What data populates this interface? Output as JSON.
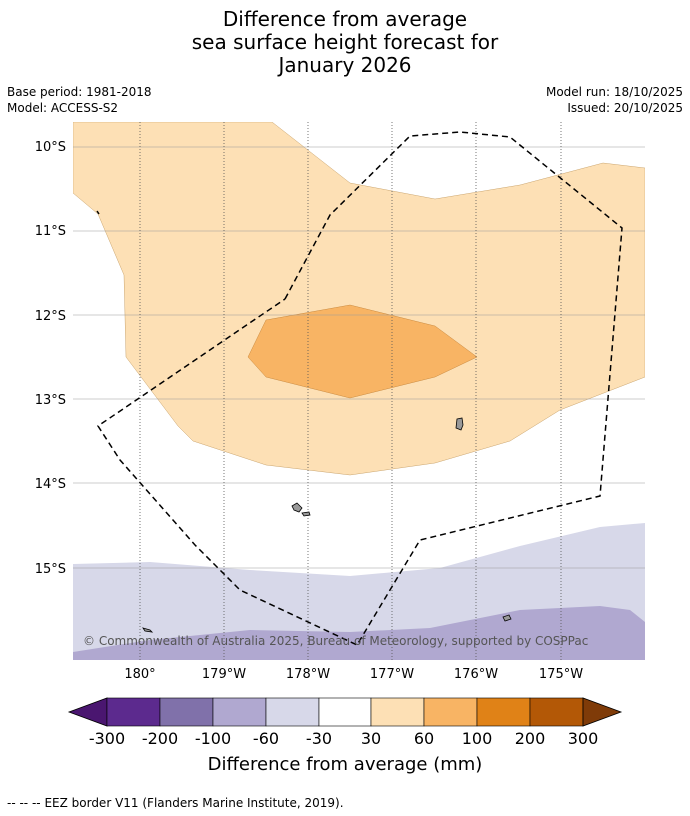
{
  "title": {
    "line1": "Difference from average",
    "line2": "sea surface height forecast for",
    "line3": "January 2026"
  },
  "meta": {
    "base_period": "Base period: 1981-2018",
    "model": "Model: ACCESS-S2",
    "model_run": "Model run: 18/10/2025",
    "issued": "Issued: 20/10/2025"
  },
  "map": {
    "lat_labels": [
      "10°S",
      "11°S",
      "12°S",
      "13°S",
      "14°S",
      "15°S"
    ],
    "lon_labels": [
      "180°",
      "179°W",
      "178°W",
      "177°W",
      "176°W",
      "175°W"
    ],
    "copyright": "© Commonwealth of Australia 2025, Bureau of Meteorology, supported by COSPPac"
  },
  "colorbar": {
    "ticks": [
      "-300",
      "-200",
      "-100",
      "-60",
      "-30",
      "30",
      "60",
      "100",
      "200",
      "300"
    ],
    "colors": [
      "#4a1670",
      "#5c2a8e",
      "#8071aa",
      "#b0a8d0",
      "#d7d8e9",
      "#ffffff",
      "#fde0b5",
      "#f8b464",
      "#e08217",
      "#b35806",
      "#7f3b08"
    ],
    "title": "Difference from average (mm)"
  },
  "footer": {
    "legend_text": "EEZ border V11 (Flanders Marine Institute, 2019)."
  }
}
